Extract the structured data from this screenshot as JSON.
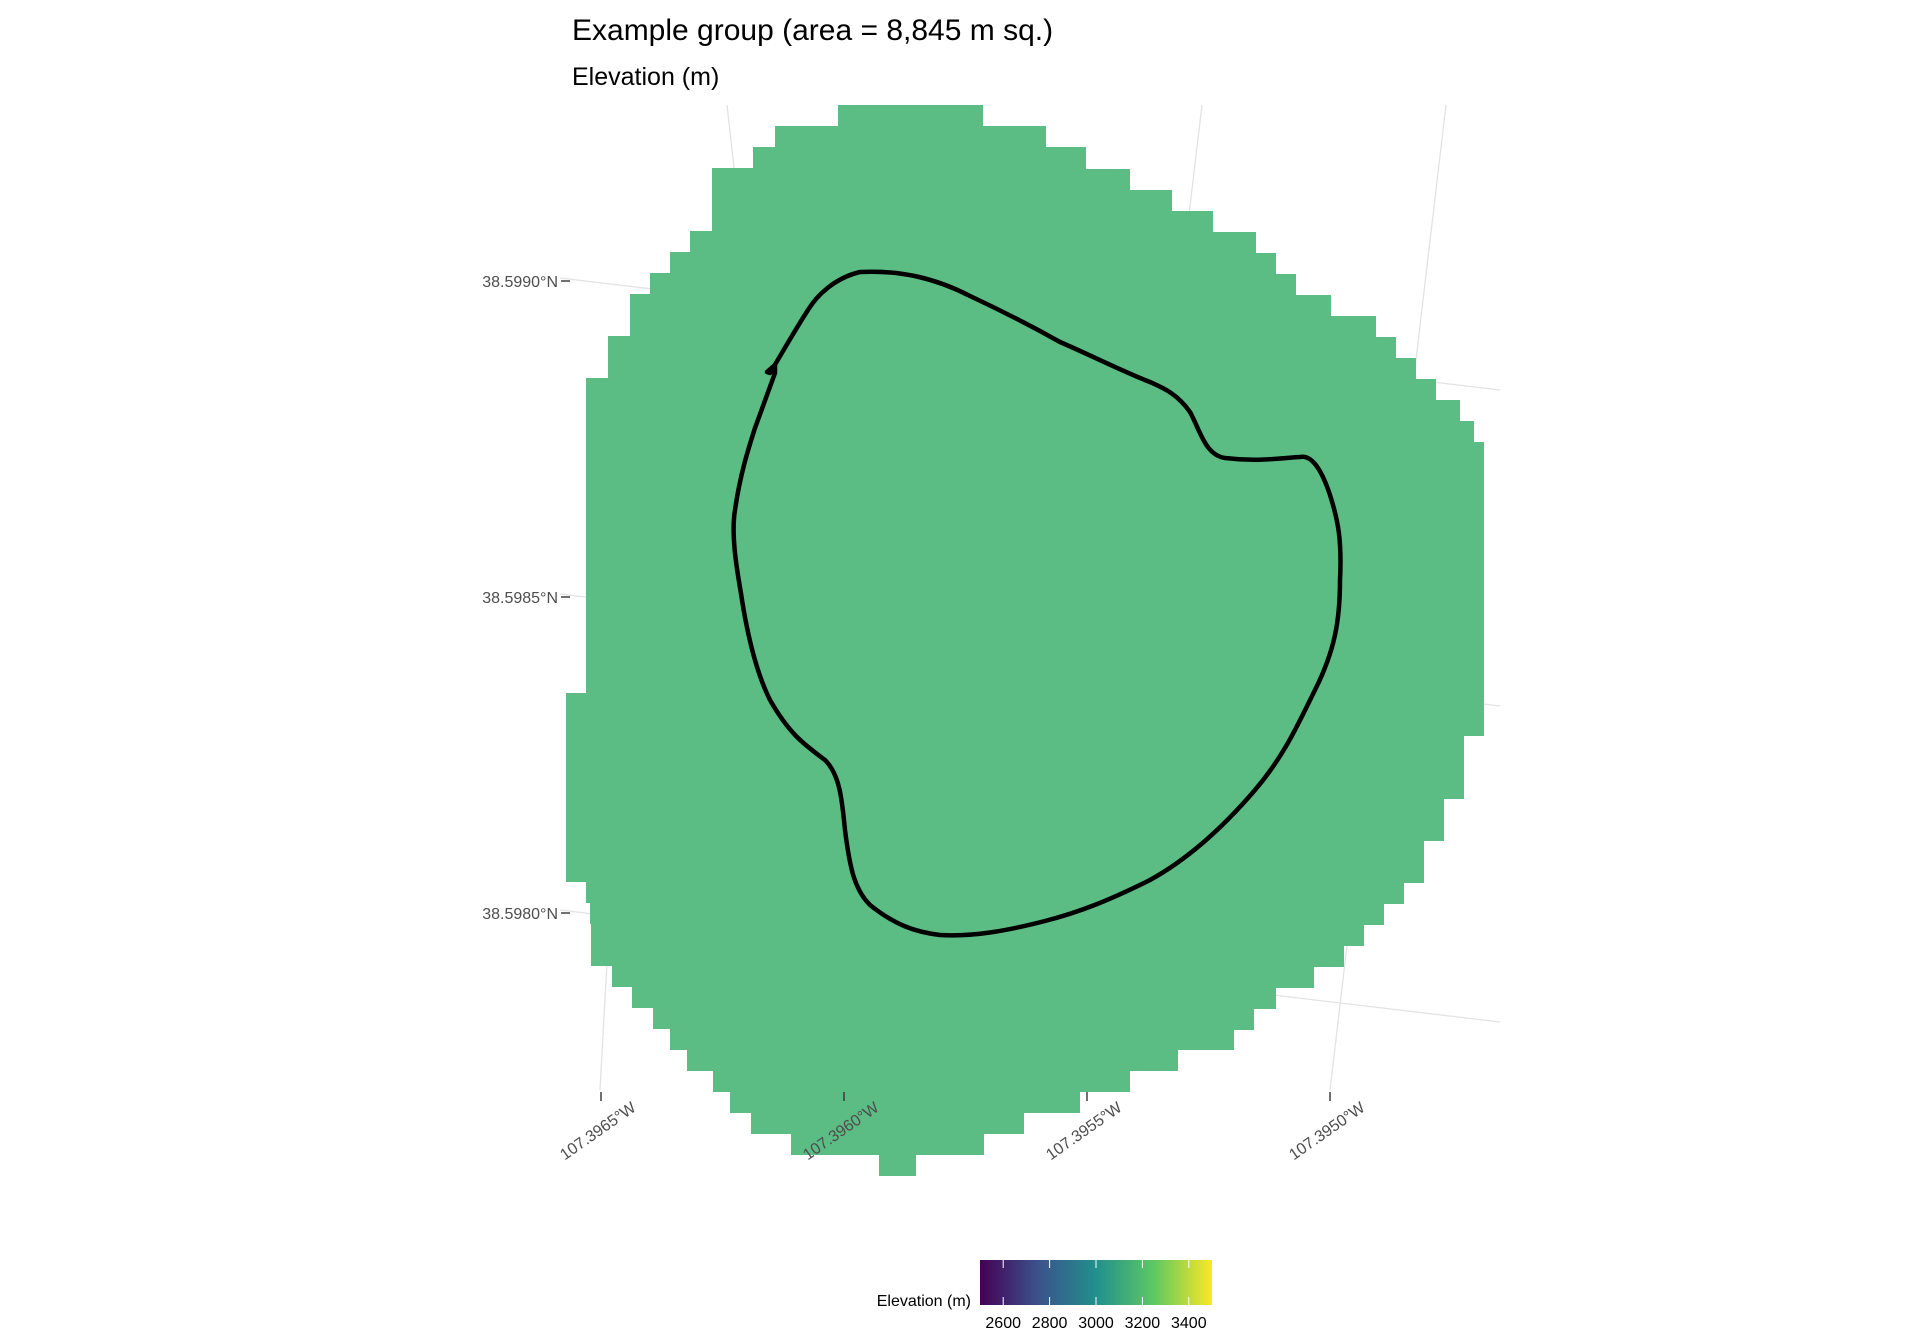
{
  "map": {
    "title": "Example group (area = 8,845 m sq.)",
    "subtitle": "Elevation (m)",
    "raster_fill_color": "#5cbd84",
    "outline_color": "#000000",
    "grid_color": "#e3e3e3",
    "latitude_ticks": [
      "38.5990°N",
      "38.5985°N",
      "38.5980°N"
    ],
    "longitude_ticks": [
      "107.3965°W",
      "107.3960°W",
      "107.3955°W",
      "107.3950°W"
    ],
    "legend": {
      "title": "Elevation (m)",
      "tick_labels": [
        "2600",
        "2800",
        "3000",
        "3200",
        "3400"
      ],
      "palette": [
        "#440154",
        "#3b528b",
        "#21908d",
        "#5dc863",
        "#fde725"
      ],
      "min": 2500,
      "max": 3500,
      "ticks": [
        2600,
        2800,
        3000,
        3200,
        3400
      ]
    }
  }
}
